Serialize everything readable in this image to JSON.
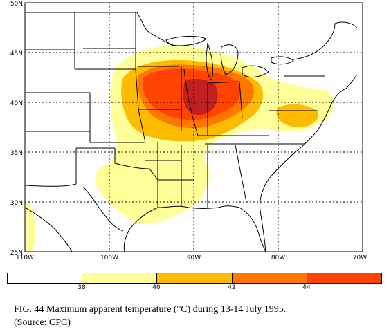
{
  "map": {
    "lat_labels": [
      "50N",
      "45N",
      "40N",
      "35N",
      "30N",
      "25N"
    ],
    "lon_labels": [
      "110W",
      "100W",
      "90W",
      "80W",
      "70W"
    ]
  },
  "legend": {
    "thresholds": [
      "38",
      "40",
      "42",
      "44"
    ],
    "colors": [
      "#ffffff",
      "#ffff99",
      "#ffbb00",
      "#ff7700",
      "#ff4400",
      "#c02020"
    ]
  },
  "caption": {
    "line1": "FIG. 44 Maximum apparent temperature (°C) during 13-14 July 1995.",
    "line2": "(Source: CPC)"
  }
}
